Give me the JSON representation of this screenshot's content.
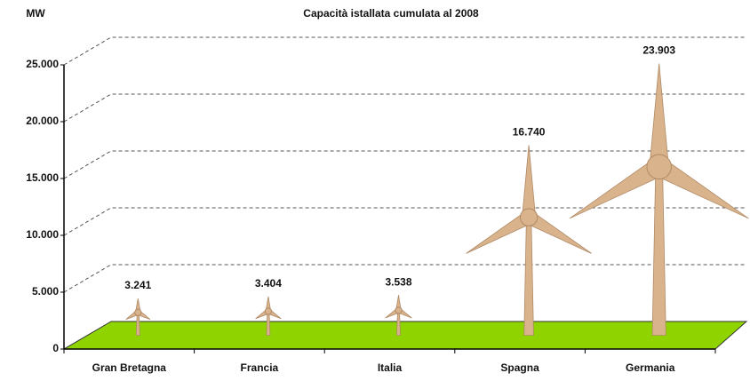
{
  "chart_data": {
    "type": "pictograph",
    "title": "Capacità istallata cumulata al 2008",
    "y_label": "MW",
    "categories": [
      "Gran Bretagna",
      "Francia",
      "Italia",
      "Spagna",
      "Germania"
    ],
    "values": [
      3241,
      3404,
      3538,
      16740,
      23903
    ],
    "value_labels": [
      "3.241",
      "3.404",
      "3.538",
      "16.740",
      "23.903"
    ],
    "color": "#d8b38c",
    "floor_color": "#8fd400",
    "ylim": [
      0,
      25000
    ],
    "yticks": [
      0,
      {
        "value": 5000,
        "label": "5.000"
      },
      {
        "value": 10000,
        "label": "10.000"
      },
      {
        "value": 15000,
        "label": "15.000"
      },
      {
        "value": 20000,
        "label": "20.000"
      },
      {
        "value": 25000,
        "label": "25.000"
      }
    ],
    "grid": true
  }
}
